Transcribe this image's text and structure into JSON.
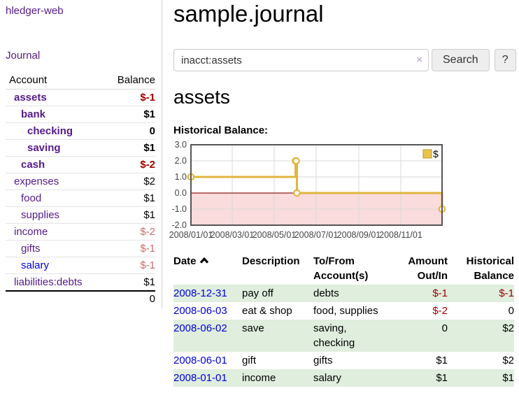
{
  "sidebar": {
    "brand": "hledger-web",
    "journal_link": "Journal",
    "columns": {
      "account": "Account",
      "balance": "Balance"
    },
    "accounts": [
      {
        "name": "assets",
        "balance": "$-1",
        "depth": 1,
        "bold": true,
        "neg": "strong"
      },
      {
        "name": "bank",
        "balance": "$1",
        "depth": 2,
        "bold": true
      },
      {
        "name": "checking",
        "balance": "0",
        "depth": 3,
        "bold": true
      },
      {
        "name": "saving",
        "balance": "$1",
        "depth": 3,
        "bold": true
      },
      {
        "name": "cash",
        "balance": "$-2",
        "depth": 2,
        "bold": true,
        "neg": "strong"
      },
      {
        "name": "expenses",
        "balance": "$2",
        "depth": 1
      },
      {
        "name": "food",
        "balance": "$1",
        "depth": 2
      },
      {
        "name": "supplies",
        "balance": "$1",
        "depth": 2
      },
      {
        "name": "income",
        "balance": "$-2",
        "depth": 1,
        "neg": "soft"
      },
      {
        "name": "gifts",
        "balance": "$-1",
        "depth": 2,
        "neg": "soft"
      },
      {
        "name": "salary",
        "balance": "$-1",
        "depth": 2,
        "neg": "soft",
        "blue": true
      },
      {
        "name": "liabilities:debts",
        "balance": "$1",
        "depth": 1
      }
    ],
    "total": "0"
  },
  "header": {
    "title": "sample.journal"
  },
  "search": {
    "value": "inacct:assets",
    "clear_icon": "×",
    "button_label": "Search",
    "help_label": "?"
  },
  "account_page": {
    "heading": "assets",
    "chart_label": "Historical Balance:"
  },
  "chart_data": {
    "type": "line",
    "title": "Historical Balance",
    "step": true,
    "series": [
      {
        "name": "$",
        "points": [
          {
            "x": "2008-01-01",
            "y": 1
          },
          {
            "x": "2008-06-01",
            "y": 2
          },
          {
            "x": "2008-06-02",
            "y": 2
          },
          {
            "x": "2008-06-03",
            "y": 0
          },
          {
            "x": "2008-12-31",
            "y": -1
          }
        ]
      }
    ],
    "xrange": [
      "2008-01-01",
      "2008-12-31"
    ],
    "ylim": [
      -2,
      3
    ],
    "yticks": [
      "3.0",
      "2.0",
      "1.0",
      "0.0",
      "-1.0",
      "-2.0"
    ],
    "xticks": [
      "2008/01/01",
      "2008/03/01",
      "2008/05/01",
      "2008/07/01",
      "2008/09/01",
      "2008/11/01"
    ],
    "grid": true,
    "legend": {
      "label": "$",
      "position": "top-right"
    },
    "colors": {
      "line": "#e1b53e",
      "marker_fill": "#ffffff",
      "legend_swatch": "#e9c64b",
      "legend_swatch_border": "#bb962e",
      "negative_fill": "#fadcdc",
      "zero_line": "#8f1a1a",
      "gridline": "#d9d9d9",
      "plot_border": "#555555",
      "tick_text": "#444444"
    }
  },
  "register": {
    "columns": {
      "date": "Date",
      "description": "Description",
      "accounts_line1": "To/From",
      "accounts_line2": "Account(s)",
      "amount_line1": "Amount",
      "amount_line2": "Out/In",
      "balance_line1": "Historical",
      "balance_line2": "Balance"
    },
    "sort_icon": "chevron-up",
    "rows": [
      {
        "date": "2008-12-31",
        "description": "pay off",
        "accounts": "debts",
        "amount": "$-1",
        "balance": "$-1",
        "amount_neg": true,
        "balance_neg": true
      },
      {
        "date": "2008-06-03",
        "description": "eat & shop",
        "accounts": "food, supplies",
        "amount": "$-2",
        "balance": "0",
        "amount_neg": true
      },
      {
        "date": "2008-06-02",
        "description": "save",
        "accounts": "saving, checking",
        "amount": "0",
        "balance": "$2",
        "wrap": true
      },
      {
        "date": "2008-06-01",
        "description": "gift",
        "accounts": "gifts",
        "amount": "$1",
        "balance": "$2"
      },
      {
        "date": "2008-01-01",
        "description": "income",
        "accounts": "salary",
        "amount": "$1",
        "balance": "$1"
      }
    ]
  }
}
